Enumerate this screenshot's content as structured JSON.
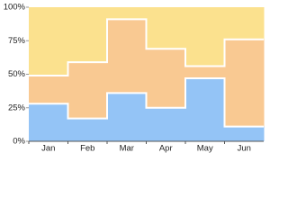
{
  "chart_data": {
    "type": "stacked-step-area",
    "categories": [
      "Jan",
      "Feb",
      "Mar",
      "Apr",
      "May",
      "Jun"
    ],
    "series": [
      {
        "color": "#94c4f6",
        "values": [
          28,
          17,
          36,
          25,
          47,
          11
        ]
      },
      {
        "color": "#f9c992",
        "values": [
          21,
          42,
          55,
          44,
          9,
          65
        ]
      },
      {
        "color": "#fbe18e",
        "values": [
          51,
          41,
          9,
          31,
          44,
          24
        ]
      }
    ],
    "ylim": [
      0,
      100
    ],
    "yticks": [
      {
        "value": 0,
        "label": "0%"
      },
      {
        "value": 25,
        "label": "25%"
      },
      {
        "value": 50,
        "label": "50%"
      },
      {
        "value": 75,
        "label": "75%"
      },
      {
        "value": 100,
        "label": "100%"
      }
    ]
  }
}
